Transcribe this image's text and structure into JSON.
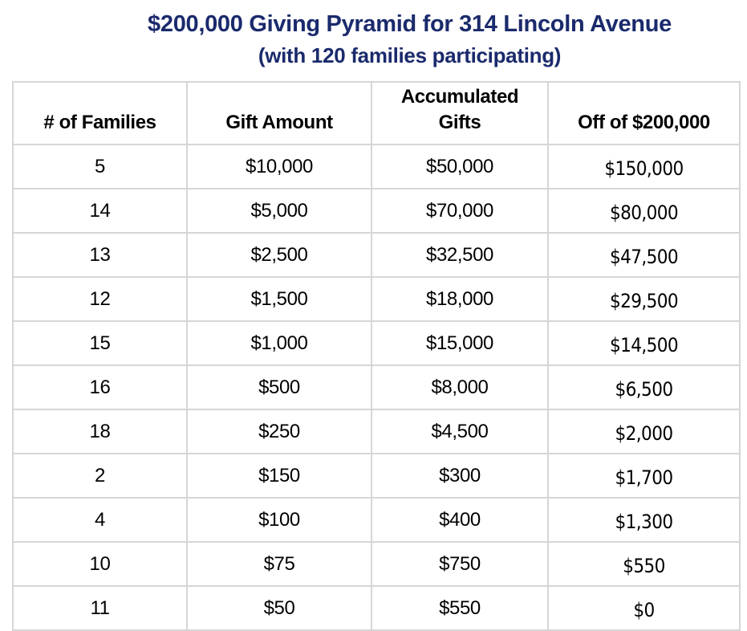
{
  "title": "$200,000 Giving Pyramid for 314 Lincoln Avenue",
  "subtitle": "(with 120 families participating)",
  "table": {
    "headers": {
      "families": "# of Families",
      "gift": "Gift Amount",
      "accumulated_line1": "Accumulated",
      "accumulated_line2": "Gifts",
      "off": "Off of $200,000"
    },
    "rows": [
      {
        "families": "5",
        "gift": "$10,000",
        "accumulated": "$50,000",
        "off": "$150,000"
      },
      {
        "families": "14",
        "gift": "$5,000",
        "accumulated": "$70,000",
        "off": "$80,000"
      },
      {
        "families": "13",
        "gift": "$2,500",
        "accumulated": "$32,500",
        "off": "$47,500"
      },
      {
        "families": "12",
        "gift": "$1,500",
        "accumulated": "$18,000",
        "off": "$29,500"
      },
      {
        "families": "15",
        "gift": "$1,000",
        "accumulated": "$15,000",
        "off": "$14,500"
      },
      {
        "families": "16",
        "gift": "$500",
        "accumulated": "$8,000",
        "off": "$6,500"
      },
      {
        "families": "18",
        "gift": "$250",
        "accumulated": "$4,500",
        "off": "$2,000"
      },
      {
        "families": "2",
        "gift": "$150",
        "accumulated": "$300",
        "off": "$1,700"
      },
      {
        "families": "4",
        "gift": "$100",
        "accumulated": "$400",
        "off": "$1,300"
      },
      {
        "families": "10",
        "gift": "$75",
        "accumulated": "$750",
        "off": "$550"
      },
      {
        "families": "11",
        "gift": "$50",
        "accumulated": "$550",
        "off": "$0"
      }
    ]
  },
  "colors": {
    "title": "#1a2a6c",
    "grid": "#d6d6d6",
    "text": "#000000"
  }
}
